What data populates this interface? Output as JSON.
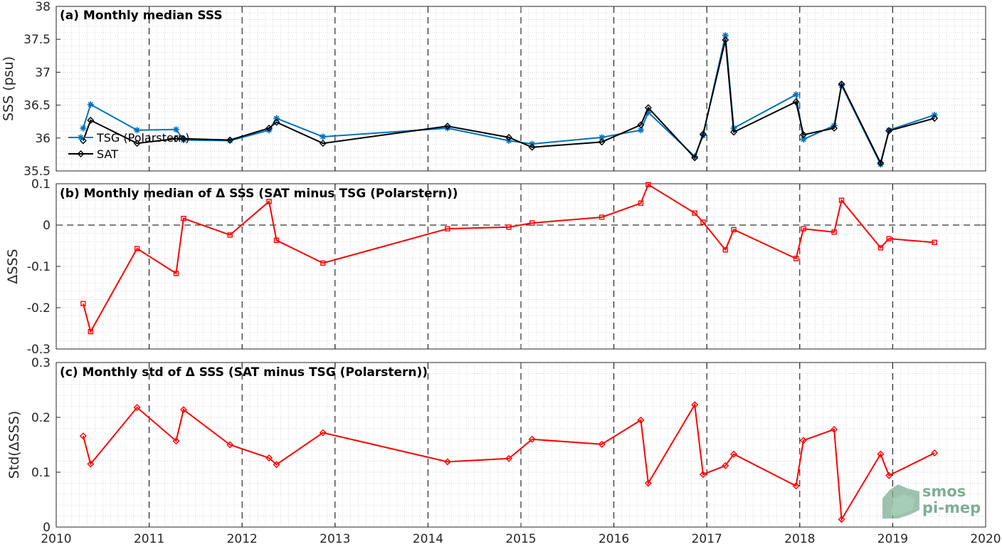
{
  "chart_data": [
    {
      "type": "line",
      "title": "(a) Monthly median SSS",
      "ylabel": "SSS (psu)",
      "xlim": [
        2010,
        2020
      ],
      "ylim": [
        35.5,
        38
      ],
      "yticks": [
        35.5,
        36,
        36.5,
        37,
        37.5,
        38
      ],
      "ytick_labels": [
        "35.5",
        "36",
        "36.5",
        "37",
        "37.5",
        "38"
      ],
      "grid": "minor dotted, yearly dashed verticals",
      "legend_position": "middle-left",
      "series": [
        {
          "name": "TSG (Polarstern)",
          "color": "#0072bd",
          "marker": "asterisk",
          "x": [
            2010.29,
            2010.37,
            2010.87,
            2011.29,
            2011.37,
            2011.87,
            2012.29,
            2012.37,
            2012.87,
            2014.21,
            2014.87,
            2015.12,
            2015.87,
            2016.29,
            2016.37,
            2016.87,
            2016.96,
            2017.2,
            2017.29,
            2017.96,
            2018.04,
            2018.37,
            2018.45,
            2018.87,
            2018.96,
            2019.45
          ],
          "values": [
            36.15,
            36.51,
            36.12,
            36.13,
            35.97,
            35.96,
            36.12,
            36.3,
            36.02,
            36.15,
            35.96,
            35.91,
            36.01,
            36.12,
            36.39,
            35.72,
            36.04,
            37.56,
            36.15,
            36.66,
            35.98,
            36.19,
            36.8,
            35.6,
            36.12,
            36.35
          ]
        },
        {
          "name": "SAT",
          "color": "#000000",
          "marker": "diamond",
          "x": [
            2010.29,
            2010.37,
            2010.87,
            2011.29,
            2011.37,
            2011.87,
            2012.29,
            2012.37,
            2012.87,
            2014.21,
            2014.87,
            2015.12,
            2015.87,
            2016.29,
            2016.37,
            2016.87,
            2016.96,
            2017.2,
            2017.29,
            2017.96,
            2018.04,
            2018.37,
            2018.45,
            2018.87,
            2018.96,
            2019.45
          ],
          "values": [
            35.96,
            36.27,
            35.92,
            35.99,
            35.99,
            35.97,
            36.15,
            36.24,
            35.92,
            36.18,
            36.01,
            35.86,
            35.94,
            36.2,
            36.46,
            35.7,
            36.06,
            37.49,
            36.09,
            36.55,
            36.05,
            36.15,
            36.82,
            35.62,
            36.11,
            36.3
          ]
        }
      ]
    },
    {
      "type": "line",
      "title": "(b) Monthly median of Δ SSS (SAT minus TSG (Polarstern))",
      "ylabel": "ΔSSS",
      "xlim": [
        2010,
        2020
      ],
      "ylim": [
        -0.3,
        0.1
      ],
      "yticks": [
        -0.3,
        -0.2,
        -0.1,
        0,
        0.1
      ],
      "ytick_labels": [
        "-0.3",
        "-0.2",
        "-0.1",
        "0",
        "0.1"
      ],
      "grid": "minor dotted, yearly dashed verticals, dashed zero line",
      "series": [
        {
          "color": "#ff0000",
          "marker": "square",
          "x": [
            2010.29,
            2010.37,
            2010.87,
            2011.29,
            2011.37,
            2011.87,
            2012.29,
            2012.37,
            2012.87,
            2014.21,
            2014.87,
            2015.12,
            2015.87,
            2016.29,
            2016.37,
            2016.87,
            2016.96,
            2017.2,
            2017.29,
            2017.96,
            2018.04,
            2018.37,
            2018.45,
            2018.87,
            2018.96,
            2019.45
          ],
          "values": [
            -0.19,
            -0.258,
            -0.057,
            -0.117,
            0.016,
            -0.024,
            0.057,
            -0.037,
            -0.092,
            -0.009,
            -0.005,
            0.005,
            0.019,
            0.053,
            0.098,
            0.029,
            0.007,
            -0.06,
            -0.011,
            -0.081,
            -0.009,
            -0.017,
            0.06,
            -0.055,
            -0.033,
            -0.042
          ]
        }
      ]
    },
    {
      "type": "line",
      "title": "(c) Monthly std of Δ SSS (SAT minus TSG (Polarstern))",
      "ylabel": "Std(ΔSSS)",
      "xlabel": "",
      "xlim": [
        2010,
        2020
      ],
      "ylim": [
        0,
        0.3
      ],
      "yticks": [
        0,
        0.1,
        0.2,
        0.3
      ],
      "ytick_labels": [
        "0",
        "0.1",
        "0.2",
        "0.3"
      ],
      "grid": "minor dotted, yearly dashed verticals",
      "series": [
        {
          "color": "#ff0000",
          "marker": "diamond",
          "x": [
            2010.29,
            2010.37,
            2010.87,
            2011.29,
            2011.37,
            2011.87,
            2012.29,
            2012.37,
            2012.87,
            2014.21,
            2014.87,
            2015.12,
            2015.87,
            2016.29,
            2016.37,
            2016.87,
            2016.96,
            2017.2,
            2017.29,
            2017.96,
            2018.04,
            2018.37,
            2018.45,
            2018.87,
            2018.96,
            2019.45
          ],
          "values": [
            0.166,
            0.115,
            0.218,
            0.157,
            0.214,
            0.15,
            0.126,
            0.114,
            0.172,
            0.119,
            0.125,
            0.16,
            0.151,
            0.195,
            0.08,
            0.223,
            0.096,
            0.112,
            0.133,
            0.075,
            0.158,
            0.178,
            0.014,
            0.133,
            0.094,
            0.135
          ]
        }
      ]
    }
  ],
  "xaxis": {
    "ticks": [
      2010,
      2011,
      2012,
      2013,
      2014,
      2015,
      2016,
      2017,
      2018,
      2019,
      2020
    ],
    "tick_labels": [
      "2010",
      "2011",
      "2012",
      "2013",
      "2014",
      "2015",
      "2016",
      "2017",
      "2018",
      "2019",
      "2020"
    ]
  },
  "logo": {
    "line1": "smos",
    "line2": "pi-mep",
    "color": "#7fae95"
  }
}
